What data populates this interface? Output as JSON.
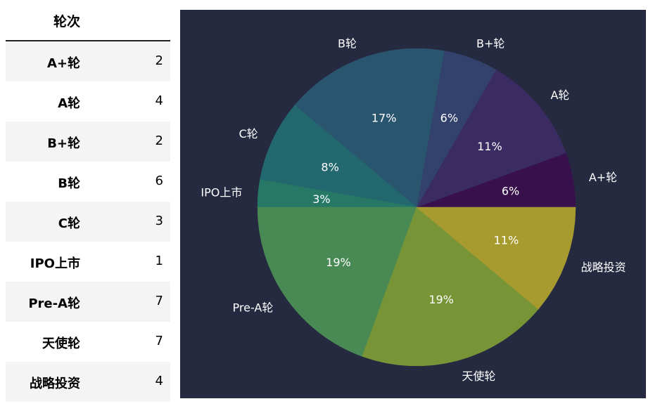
{
  "table": {
    "header": "轮次",
    "rows": [
      {
        "label": "A+轮",
        "value": "2"
      },
      {
        "label": "A轮",
        "value": "4"
      },
      {
        "label": "B+轮",
        "value": "2"
      },
      {
        "label": "B轮",
        "value": "6"
      },
      {
        "label": "C轮",
        "value": "3"
      },
      {
        "label": "IPO上市",
        "value": "1"
      },
      {
        "label": "Pre-A轮",
        "value": "7"
      },
      {
        "label": "天使轮",
        "value": "7"
      },
      {
        "label": "战略投资",
        "value": "4"
      }
    ]
  },
  "chart_data": {
    "type": "pie",
    "categories": [
      "A+轮",
      "A轮",
      "B+轮",
      "B轮",
      "C轮",
      "IPO上市",
      "Pre-A轮",
      "天使轮",
      "战略投资"
    ],
    "values": [
      2,
      4,
      2,
      6,
      3,
      1,
      7,
      7,
      4
    ],
    "percent_labels": [
      "6%",
      "11%",
      "6%",
      "17%",
      "8%",
      "3%",
      "19%",
      "19%",
      "11%"
    ],
    "colors": [
      "#440154",
      "#472d7b",
      "#3b528b",
      "#2c728e",
      "#21918c",
      "#28ae80",
      "#5ec962",
      "#addc30",
      "#fde725"
    ],
    "slice_alpha": 0.6,
    "start_angle_deg": 0,
    "direction": "counterclockwise",
    "background": "#262a40",
    "title": ""
  }
}
